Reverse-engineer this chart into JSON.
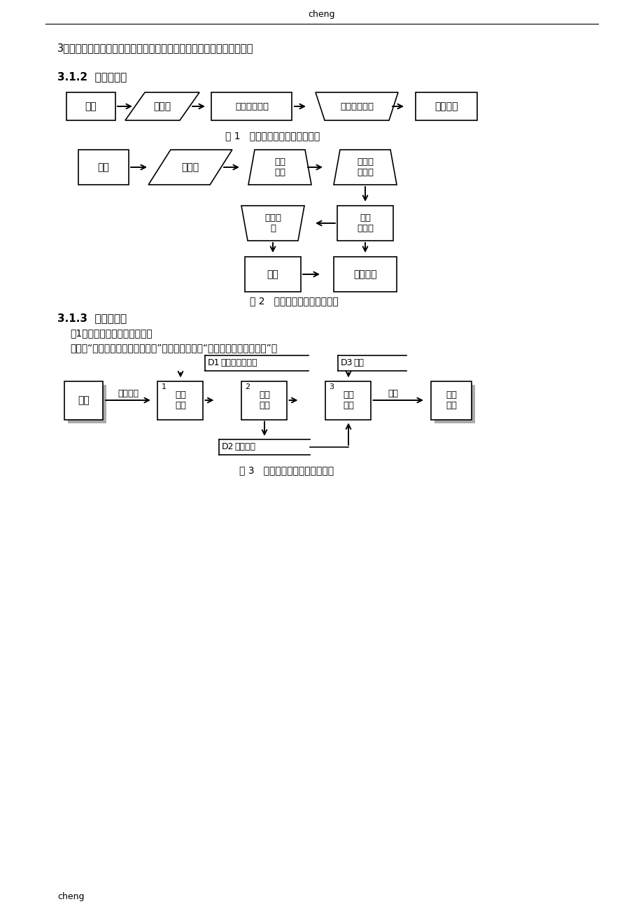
{
  "header_text": "cheng",
  "footer_text": "cheng",
  "line1": "3、数据管理：包括数据备份和恢复、部分数据管理、企业常用数据管理",
  "section_312": "3.1.2  系统流程图",
  "fig1_caption": "图 1   人事档案管理大致处理过程",
  "fig2_caption": "图 2   人事档案管理系统流程图",
  "section_313": "3.1.3  数据流程图",
  "sub_313_1": "（1）人事档案管理的数据流图",
  "sub_313_2": "通过对“人事档案管理系统流程图”抽象处理，得到“人事档案管理数据流图”。",
  "fig3_caption": "图 3   人事档案管理系统数据流图",
  "bg_color": "#ffffff",
  "text_color": "#000000"
}
